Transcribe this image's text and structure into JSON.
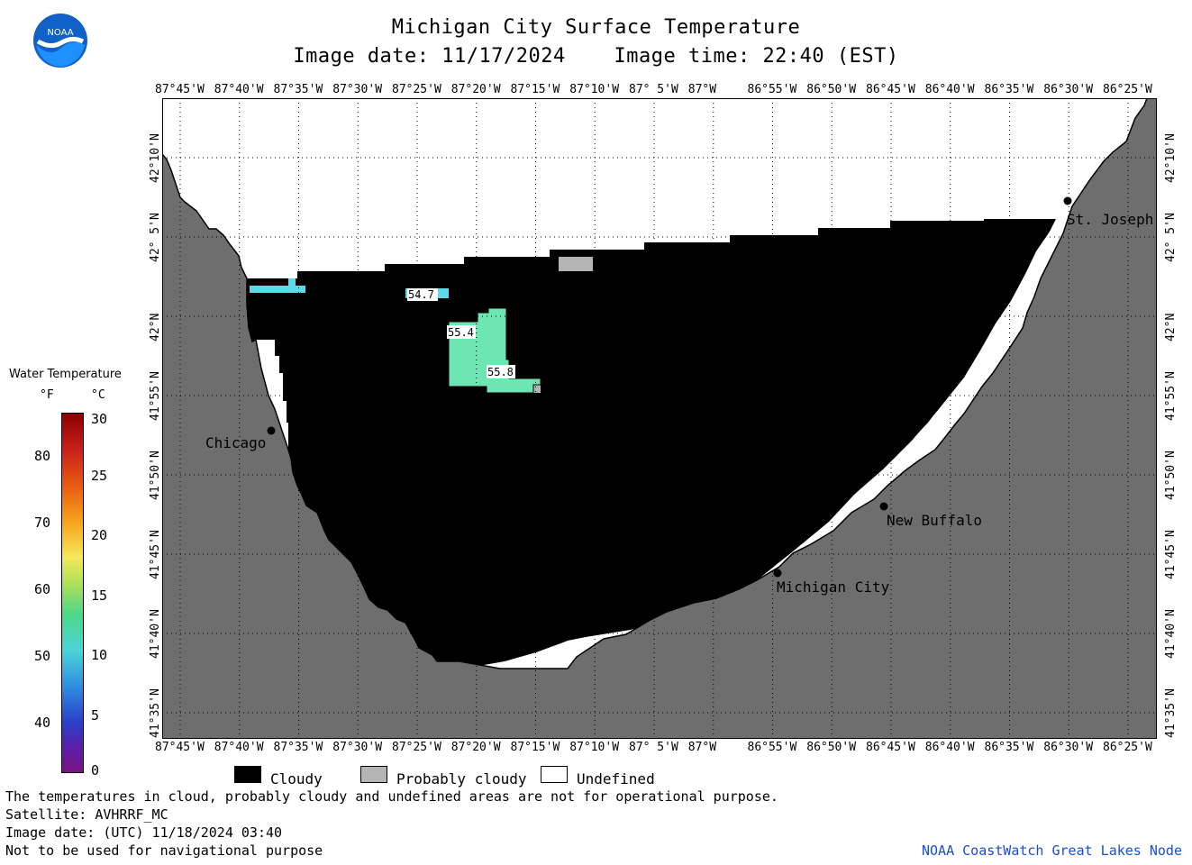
{
  "header": {
    "title": "Michigan City Surface Temperature",
    "image_date": "Image date: 11/17/2024",
    "image_time": "Image time: 22:40 (EST)"
  },
  "logo": {
    "text": "NOAA",
    "icon": "noaa-logo"
  },
  "axes": {
    "longitude_labels": [
      "87°45'W",
      "87°40'W",
      "87°35'W",
      "87°30'W",
      "87°25'W",
      "87°20'W",
      "87°15'W",
      "87°10'W",
      "87° 5'W",
      "87°W",
      "86°55'W",
      "86°50'W",
      "86°45'W",
      "86°40'W",
      "86°35'W",
      "86°30'W",
      "86°25'W"
    ],
    "latitude_labels": [
      "42°10'N",
      "42° 5'N",
      "42°N",
      "41°55'N",
      "41°50'N",
      "41°45'N",
      "41°40'N",
      "41°35'N"
    ]
  },
  "map": {
    "cities": [
      {
        "name": "Chicago"
      },
      {
        "name": "St. Joseph"
      },
      {
        "name": "New Buffalo"
      },
      {
        "name": "Michigan City"
      }
    ],
    "temperature_labels": [
      "54.7",
      "55.4",
      "55.8"
    ],
    "colors": {
      "land": "#6e6e6e",
      "cloud": "#000000",
      "probably_cloudy": "#b4b4b4",
      "undefined": "#ffffff",
      "water_cyan": "#5fd8e8",
      "water_green": "#6ee6b4"
    }
  },
  "colorbar": {
    "title": "Water Temperature",
    "unit_f": "°F",
    "unit_c": "°C",
    "f_labels": [
      "80",
      "70",
      "60",
      "50",
      "40"
    ],
    "c_labels": [
      "30",
      "25",
      "20",
      "15",
      "10",
      "5",
      "0"
    ]
  },
  "legend": {
    "cloudy": "Cloudy",
    "probably_cloudy": "Probably cloudy",
    "undefined": "Undefined"
  },
  "footer": {
    "line1": "The temperatures in cloud, probably cloudy and undefined areas are not for operational purpose.",
    "line2": "Satellite: AVHRRF_MC",
    "line3": "Image date: (UTC) 11/18/2024  03:40",
    "line4": "Not to be used for navigational purpose",
    "credit": "NOAA CoastWatch Great Lakes Node"
  }
}
